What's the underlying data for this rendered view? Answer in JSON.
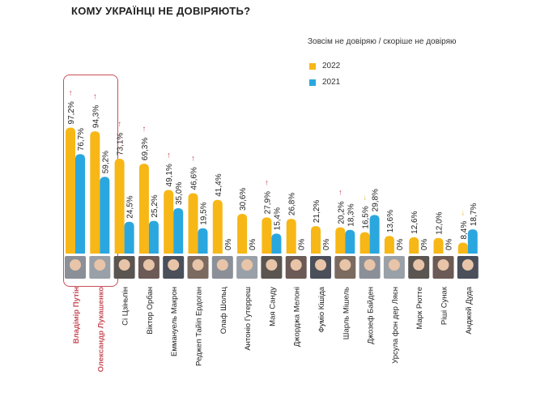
{
  "chart_data": {
    "type": "bar",
    "title": "КОМУ УКРАЇНЦІ НЕ ДОВІРЯЮТЬ?",
    "subtitle": "Зовсім не довіряю / скоріше не довіряю",
    "ylim": [
      0,
      100
    ],
    "colors": {
      "2022": "#f7b716",
      "2021": "#2aa7df",
      "up": "#c8505a",
      "down": "#e6c34a",
      "highlight": "#c8505a"
    },
    "categories": [
      "Владімір Путін",
      "Олександр Лукашенко",
      "Сі Цзіньпін",
      "Віктор Орбан",
      "Еммануель Макрон",
      "Реджеп Тайіп Ердоган",
      "Олаф Шольц",
      "Антоніо Гутерреш",
      "Мая Санду",
      "Джорджа Мелоні",
      "Фуміо Кішіда",
      "Шарль Мішель",
      "Джозеф Байден",
      "Урсула фон дер Ляєн",
      "Марк Рютте",
      "Ріші Сунак",
      "Анджей Дуда"
    ],
    "series": [
      {
        "name": "2022",
        "values": [
          97.2,
          94.3,
          73.1,
          69.3,
          49.1,
          46.6,
          41.4,
          30.6,
          27.9,
          26.8,
          21.2,
          20.2,
          16.5,
          13.6,
          12.6,
          12.0,
          8.4
        ],
        "labels": [
          "97,2%",
          "94,3%",
          "73,1%",
          "69,3%",
          "49,1%",
          "46,6%",
          "41,4%",
          "30,6%",
          "27,9%",
          "26,8%",
          "21,2%",
          "20,2%",
          "16,5%",
          "13,6%",
          "12,6%",
          "12,0%",
          "8,4%"
        ]
      },
      {
        "name": "2021",
        "values": [
          76.7,
          59.2,
          24.5,
          25.2,
          35.0,
          19.5,
          0,
          0,
          15.4,
          0,
          0,
          18.3,
          29.8,
          0,
          0,
          0,
          18.7
        ],
        "labels": [
          "76,7%",
          "59,2%",
          "24,5%",
          "25,2%",
          "35,0%",
          "19,5%",
          "0%",
          "0%",
          "15,4%",
          "0%",
          "0%",
          "18,3%",
          "29,8%",
          "0%",
          "0%",
          "0%",
          "18,7%"
        ]
      }
    ],
    "trend": [
      "up",
      "up",
      "up",
      "up",
      "up",
      "up",
      "",
      "",
      "up",
      "",
      "",
      "up",
      "down",
      "",
      "",
      "",
      "down"
    ],
    "highlighted": [
      0,
      1
    ]
  }
}
